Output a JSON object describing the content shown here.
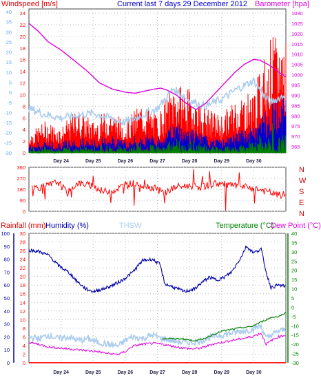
{
  "header": {
    "windspeed_label": "Windspeed [m/s]",
    "current_label": "Current last 7 days 29 December 2012",
    "barometer_label": "Barometer [hpa]"
  },
  "bottom_header": {
    "rainfall_label": "Rainfall (mm)",
    "humidity_label": "Humidity (%)",
    "thsw_label": "THSW",
    "temperature_label": "Temperature (°C)",
    "dewpoint_label": "Dew Point (°C)"
  },
  "colors": {
    "wind": "#ff0000",
    "wind_mid": "#0000cc",
    "wind_low": "#008000",
    "barometer": "#dd00dd",
    "thsw": "#aaccee",
    "humidity": "#0000aa",
    "temperature": "#008000",
    "dewpoint": "#dd00dd",
    "rainfall": "#ff0000",
    "blue_axis": "#66aaff",
    "grid": "#bbbbbb"
  },
  "chart_data": [
    {
      "id": "wind_barometer",
      "type": "line",
      "x_categories": [
        "Day 24",
        "Day 25",
        "Day 26",
        "Day 27",
        "Day 28",
        "Day 29",
        "Day 30"
      ],
      "y_left": {
        "label": "Windspeed [m/s]",
        "ticks_red": [
          "0",
          "2",
          "4",
          "6",
          "8",
          "10",
          "12",
          "14",
          "16",
          "18",
          "20",
          "22",
          "24"
        ],
        "ticks_blue": [
          "-30",
          "-25",
          "-20",
          "-15",
          "-10",
          "-5",
          "0",
          "5",
          "10",
          "15",
          "20",
          "25",
          "30",
          "35",
          "40"
        ],
        "ylim": [
          0,
          24
        ]
      },
      "y_right": {
        "label": "Barometer [hpa]",
        "ticks": [
          "965",
          "970",
          "975",
          "980",
          "985",
          "990",
          "995",
          "1000",
          "1005",
          "1010",
          "1015",
          "1020",
          "1025",
          "1030"
        ],
        "ylim": [
          962,
          1032
        ]
      },
      "barometer": [
        [
          0,
          1025
        ],
        [
          0.3,
          1021
        ],
        [
          0.6,
          1016
        ],
        [
          1.0,
          1012
        ],
        [
          1.4,
          1007
        ],
        [
          1.8,
          1002
        ],
        [
          2.2,
          996
        ],
        [
          2.6,
          993
        ],
        [
          3.0,
          991.5
        ],
        [
          3.3,
          991
        ],
        [
          3.6,
          992
        ],
        [
          3.9,
          993
        ],
        [
          4.1,
          993.5
        ],
        [
          4.3,
          992.5
        ],
        [
          4.6,
          990
        ],
        [
          4.9,
          986
        ],
        [
          5.2,
          983
        ],
        [
          5.5,
          986
        ],
        [
          5.8,
          991
        ],
        [
          6.1,
          996
        ],
        [
          6.4,
          1001
        ],
        [
          6.7,
          1005
        ],
        [
          7.0,
          1007.5
        ],
        [
          7.2,
          1007
        ],
        [
          7.5,
          1004.5
        ],
        [
          7.8,
          1001
        ],
        [
          8.0,
          999
        ]
      ],
      "wind_avg_envelope": [
        [
          0,
          2
        ],
        [
          0.5,
          3
        ],
        [
          1,
          2.5
        ],
        [
          1.5,
          4
        ],
        [
          2,
          3
        ],
        [
          2.5,
          4.5
        ],
        [
          3,
          3
        ],
        [
          3.5,
          5
        ],
        [
          4,
          4
        ],
        [
          4.5,
          7
        ],
        [
          5,
          6
        ],
        [
          5.5,
          4
        ],
        [
          6,
          3
        ],
        [
          6.5,
          5
        ],
        [
          7,
          6
        ],
        [
          7.5,
          12
        ],
        [
          8,
          14
        ]
      ],
      "wind_gust_envelope": [
        [
          0,
          3
        ],
        [
          0.5,
          5
        ],
        [
          1,
          4
        ],
        [
          1.5,
          7
        ],
        [
          2,
          5
        ],
        [
          2.5,
          7
        ],
        [
          3,
          5
        ],
        [
          3.5,
          8
        ],
        [
          4,
          6
        ],
        [
          4.5,
          11
        ],
        [
          5,
          10
        ],
        [
          5.5,
          7
        ],
        [
          6,
          6
        ],
        [
          6.5,
          9
        ],
        [
          7,
          10
        ],
        [
          7.5,
          18
        ],
        [
          8,
          19
        ]
      ],
      "thsw_line": [
        [
          0,
          3.8
        ],
        [
          0.5,
          3.3
        ],
        [
          1,
          3.0
        ],
        [
          1.5,
          3.2
        ],
        [
          2,
          3.4
        ],
        [
          2.5,
          3.0
        ],
        [
          3,
          2.6
        ],
        [
          3.5,
          3.2
        ],
        [
          4,
          3.8
        ],
        [
          4.5,
          5.5
        ],
        [
          5,
          4.5
        ],
        [
          5.5,
          4.0
        ],
        [
          6,
          4.6
        ],
        [
          6.5,
          5.5
        ],
        [
          7,
          6.2
        ],
        [
          7.3,
          5.0
        ],
        [
          7.5,
          4.3
        ],
        [
          8,
          5.0
        ]
      ]
    },
    {
      "id": "wind_direction",
      "type": "line",
      "x_categories": [
        "Day 24",
        "Day 25",
        "Day 26",
        "Day 27",
        "Day 28",
        "Day 29",
        "Day 30"
      ],
      "y_left": {
        "ticks": [
          "0",
          "90",
          "180",
          "270",
          "360"
        ],
        "ylim": [
          0,
          360
        ]
      },
      "y_right": {
        "ticks": [
          "N",
          "W",
          "S",
          "E",
          "N"
        ]
      },
      "direction": [
        [
          0,
          190
        ],
        [
          0.5,
          200
        ],
        [
          0.9,
          240
        ],
        [
          1.2,
          150
        ],
        [
          1.5,
          230
        ],
        [
          2,
          210
        ],
        [
          2.3,
          160
        ],
        [
          2.7,
          175
        ],
        [
          3.0,
          220
        ],
        [
          3.3,
          230
        ],
        [
          3.6,
          210
        ],
        [
          3.9,
          190
        ],
        [
          4.2,
          150
        ],
        [
          4.6,
          200
        ],
        [
          5,
          210
        ],
        [
          5.4,
          200
        ],
        [
          5.8,
          230
        ],
        [
          6.2,
          215
        ],
        [
          6.6,
          200
        ],
        [
          7.0,
          190
        ],
        [
          7.4,
          160
        ],
        [
          7.8,
          130
        ],
        [
          8.0,
          140
        ]
      ]
    },
    {
      "id": "temp_humidity",
      "type": "line",
      "x_categories": [
        "Day 24",
        "Day 25",
        "Day 26",
        "Day 27",
        "Day 28",
        "Day 29",
        "Day 30"
      ],
      "y_rain": {
        "ticks": [
          "0",
          "2",
          "4",
          "6",
          "8",
          "10",
          "12",
          "14",
          "16",
          "18",
          "20",
          "22",
          "24",
          "26",
          "28",
          "30"
        ],
        "ylim": [
          0,
          30
        ]
      },
      "y_humidity": {
        "ticks": [
          "0",
          "10",
          "20",
          "30",
          "40",
          "50",
          "60",
          "70",
          "80",
          "90",
          "100"
        ],
        "ylim": [
          0,
          100
        ]
      },
      "y_temp": {
        "ticks": [
          "-30",
          "-25",
          "-20",
          "-15",
          "-10",
          "-5",
          "0",
          "5",
          "10",
          "15",
          "20",
          "25",
          "30",
          "35",
          "40"
        ],
        "ylim": [
          -30,
          40
        ]
      },
      "humidity": [
        [
          0,
          87
        ],
        [
          0.4,
          86
        ],
        [
          0.8,
          83
        ],
        [
          1.2,
          75
        ],
        [
          1.6,
          70
        ],
        [
          2.0,
          62
        ],
        [
          2.3,
          57
        ],
        [
          2.6,
          55
        ],
        [
          3.0,
          57
        ],
        [
          3.4,
          60
        ],
        [
          3.8,
          64
        ],
        [
          4.2,
          70
        ],
        [
          4.6,
          79
        ],
        [
          5.0,
          80
        ],
        [
          5.3,
          76
        ],
        [
          5.5,
          61
        ],
        [
          5.9,
          58
        ],
        [
          6.3,
          55
        ],
        [
          6.7,
          57
        ],
        [
          7.0,
          62
        ],
        [
          7.3,
          66
        ],
        [
          7.6,
          64
        ],
        [
          7.9,
          66
        ],
        [
          8.2,
          70
        ],
        [
          8.6,
          82
        ],
        [
          8.8,
          90
        ],
        [
          9.1,
          85
        ],
        [
          9.4,
          88
        ],
        [
          9.6,
          70
        ],
        [
          9.8,
          58
        ],
        [
          10.1,
          60
        ],
        [
          10.4,
          59
        ]
      ],
      "temperature": [
        [
          5.4,
          -17
        ],
        [
          5.8,
          -17
        ],
        [
          6.2,
          -17
        ],
        [
          6.6,
          -18
        ],
        [
          7.0,
          -17.5
        ],
        [
          7.4,
          -15
        ],
        [
          7.8,
          -13
        ],
        [
          8.2,
          -12
        ],
        [
          8.6,
          -11
        ],
        [
          9.0,
          -10.5
        ],
        [
          9.4,
          -8
        ],
        [
          9.8,
          -5.5
        ],
        [
          10.1,
          -5
        ],
        [
          10.4,
          -3
        ]
      ],
      "dewpoint": [
        [
          0,
          -19
        ],
        [
          0.4,
          -20
        ],
        [
          0.8,
          -21.5
        ],
        [
          1.2,
          -22
        ],
        [
          1.6,
          -22.5
        ],
        [
          2.0,
          -23
        ],
        [
          2.4,
          -23.5
        ],
        [
          2.8,
          -24
        ],
        [
          3.2,
          -25
        ],
        [
          3.6,
          -25.5
        ],
        [
          3.9,
          -24
        ],
        [
          4.2,
          -21
        ],
        [
          4.6,
          -20
        ],
        [
          5.0,
          -19.5
        ],
        [
          5.4,
          -20
        ],
        [
          5.8,
          -21
        ],
        [
          6.2,
          -22
        ],
        [
          6.6,
          -22.5
        ],
        [
          7.0,
          -22
        ],
        [
          7.4,
          -20
        ],
        [
          7.8,
          -19
        ],
        [
          8.2,
          -18
        ],
        [
          8.6,
          -17
        ],
        [
          9.0,
          -16
        ],
        [
          9.4,
          -14
        ],
        [
          9.6,
          -20
        ],
        [
          9.8,
          -18
        ],
        [
          10.1,
          -16
        ],
        [
          10.4,
          -15
        ]
      ],
      "thsw": [
        [
          0,
          -16
        ],
        [
          0.4,
          -17
        ],
        [
          0.8,
          -15
        ],
        [
          1.2,
          -17
        ],
        [
          1.6,
          -16
        ],
        [
          2.0,
          -18
        ],
        [
          2.4,
          -17
        ],
        [
          2.8,
          -19
        ],
        [
          3.2,
          -20
        ],
        [
          3.6,
          -21
        ],
        [
          3.9,
          -18
        ],
        [
          4.2,
          -16
        ],
        [
          4.6,
          -17
        ],
        [
          5.0,
          -15
        ],
        [
          5.4,
          -17
        ],
        [
          5.8,
          -18
        ],
        [
          6.2,
          -19
        ],
        [
          6.6,
          -19
        ],
        [
          7.0,
          -18
        ],
        [
          7.4,
          -16
        ],
        [
          7.8,
          -15
        ],
        [
          8.2,
          -14
        ],
        [
          8.6,
          -13
        ],
        [
          9.0,
          -12
        ],
        [
          9.4,
          -10
        ],
        [
          9.6,
          -17
        ],
        [
          9.8,
          -15
        ],
        [
          10.1,
          -13
        ],
        [
          10.4,
          -12
        ]
      ],
      "rainfall": [
        [
          0,
          0
        ],
        [
          10.4,
          0
        ]
      ]
    }
  ]
}
